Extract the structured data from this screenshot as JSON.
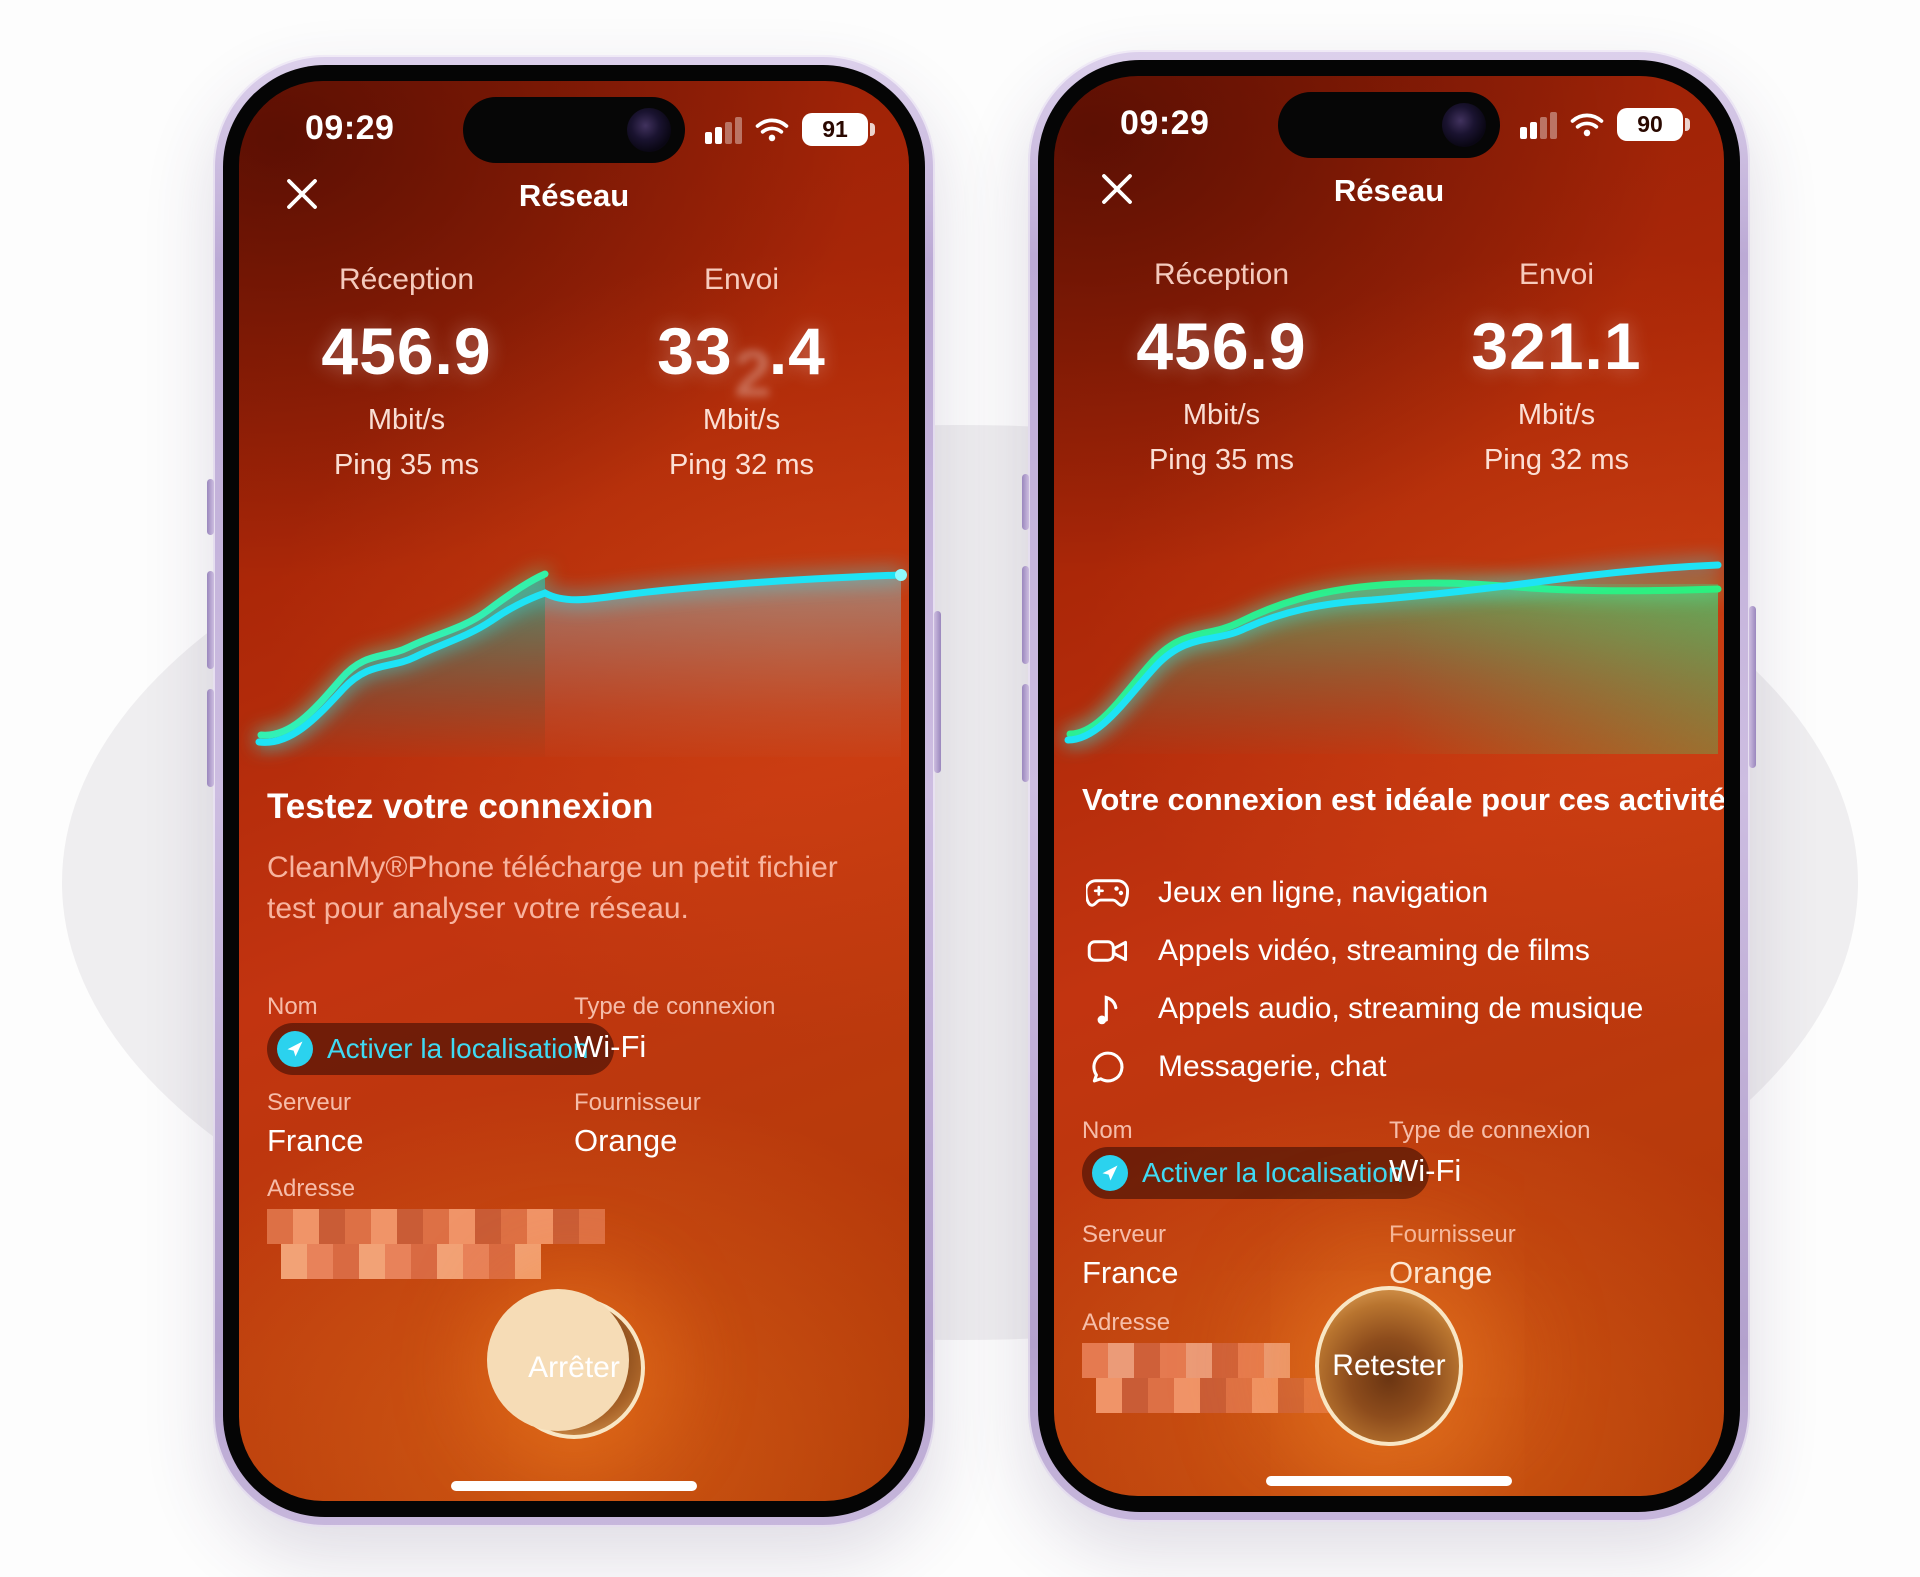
{
  "phones": [
    {
      "status_bar": {
        "time": "09:29",
        "battery_percent": "91"
      },
      "nav": {
        "title": "Réseau"
      },
      "stats": {
        "reception": {
          "label": "Réception",
          "value": "456.9",
          "unit": "Mbit/s",
          "ping": "Ping 35 ms"
        },
        "envoi": {
          "label": "Envoi",
          "value_prefix": "33",
          "value_rolling": "2",
          "value_suffix": ".4",
          "unit": "Mbit/s",
          "ping": "Ping 32 ms"
        }
      },
      "section": {
        "heading": "Testez votre connexion",
        "body": "CleanMy®Phone télécharge un petit fichier test pour analyser votre réseau."
      },
      "info": {
        "name_label": "Nom",
        "location_button_label": "Activer la localisation",
        "connection_type_label": "Type de connexion",
        "connection_type_value": "Wi-Fi",
        "server_label": "Serveur",
        "server_value": "France",
        "provider_label": "Fournisseur",
        "provider_value": "Orange",
        "address_label": "Adresse"
      },
      "action_button_label": "Arrêter"
    },
    {
      "status_bar": {
        "time": "09:29",
        "battery_percent": "90"
      },
      "nav": {
        "title": "Réseau"
      },
      "stats": {
        "reception": {
          "label": "Réception",
          "value": "456.9",
          "unit": "Mbit/s",
          "ping": "Ping 35 ms"
        },
        "envoi": {
          "label": "Envoi",
          "value": "321.1",
          "unit": "Mbit/s",
          "ping": "Ping 32 ms"
        }
      },
      "section": {
        "heading": "Votre connexion est idéale pour ces activités"
      },
      "activities": [
        {
          "icon": "game-controller-icon",
          "label": "Jeux en ligne, navigation"
        },
        {
          "icon": "video-camera-icon",
          "label": "Appels vidéo, streaming de films"
        },
        {
          "icon": "music-note-icon",
          "label": "Appels audio, streaming de musique"
        },
        {
          "icon": "chat-bubble-icon",
          "label": "Messagerie, chat"
        }
      ],
      "info": {
        "name_label": "Nom",
        "location_button_label": "Activer la localisation",
        "connection_type_label": "Type de connexion",
        "connection_type_value": "Wi-Fi",
        "server_label": "Serveur",
        "server_value": "France",
        "provider_label": "Fournisseur",
        "provider_value": "Orange",
        "address_label": "Adresse",
        "address_visible": "0"
      },
      "action_button_label": "Retester"
    }
  ],
  "colors": {
    "accent_cyan": "#1ee3f5",
    "accent_green": "#2df07e",
    "button_ring": "#f9e6c4",
    "screen_red": "#c23410"
  }
}
